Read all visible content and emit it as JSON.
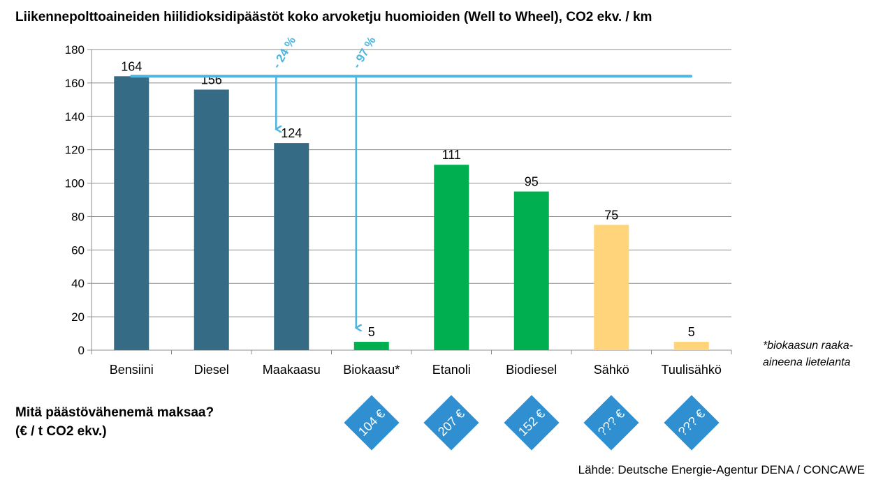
{
  "chart_data": {
    "type": "bar",
    "title": "Liikennepolttoaineiden hiilidioksidipäästöt koko arvoketju huomioiden (Well to Wheel), CO2 ekv. / km",
    "categories": [
      "Bensiini",
      "Diesel",
      "Maakaasu",
      "Biokaasu*",
      "Etanoli",
      "Biodiesel",
      "Sähkö",
      "Tuulisähkö"
    ],
    "values": [
      164,
      156,
      124,
      5,
      111,
      95,
      75,
      5
    ],
    "bar_colors": [
      "#366b86",
      "#366b86",
      "#366b86",
      "#00b050",
      "#00b050",
      "#00b050",
      "#ffd47a",
      "#ffd47a"
    ],
    "ylim": [
      0,
      180
    ],
    "yticks": [
      0,
      20,
      40,
      60,
      80,
      100,
      120,
      140,
      160,
      180
    ],
    "grid": true,
    "reference_line": {
      "value": 164,
      "color": "#4fb5df"
    },
    "annotations": [
      {
        "label": "- 24 %",
        "from": 164,
        "to": 124,
        "category": "Maakaasu"
      },
      {
        "label": "- 97 %",
        "from": 164,
        "to": 5,
        "category": "Biokaasu*"
      }
    ]
  },
  "footnote": {
    "line1": "*biokaasun raaka-",
    "line2": "aineena lietelanta"
  },
  "question": {
    "line1": "Mitä päästövähenemä maksaa?",
    "line2": "(€ / t CO2 ekv.)"
  },
  "badges": [
    {
      "category": "Biokaasu*",
      "label": "104 €"
    },
    {
      "category": "Etanoli",
      "label": "207 €"
    },
    {
      "category": "Biodiesel",
      "label": "152 €"
    },
    {
      "category": "Sähkö",
      "label": "??? €"
    },
    {
      "category": "Tuulisähkö",
      "label": "??? €"
    }
  ],
  "badge_color": "#2f8fd0",
  "source": "Lähde: Deutsche Energie-Agentur DENA / CONCAWE"
}
